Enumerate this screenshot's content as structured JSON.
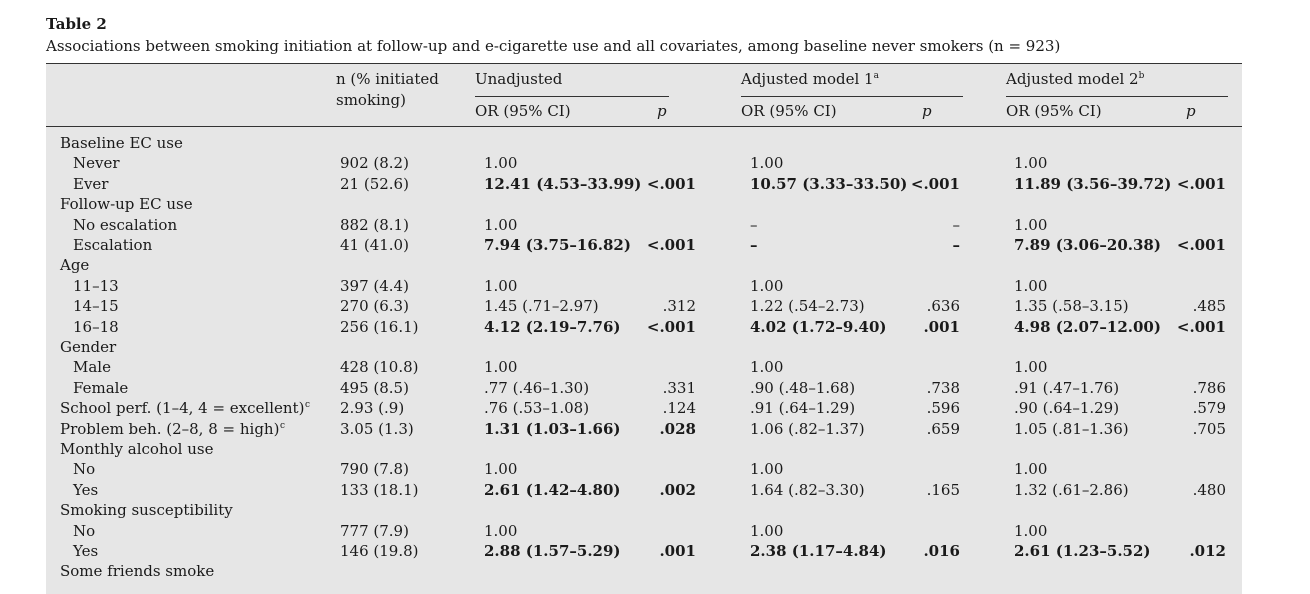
{
  "caption": {
    "title": "Table 2",
    "text": "Associations between smoking initiation at follow-up and e-cigarette use and all covariates, among baseline never smokers (n = 923)"
  },
  "header": {
    "n_line1": "n (% initiated",
    "n_line2": "smoking)",
    "unadjusted": "Unadjusted",
    "model1": "Adjusted model 1",
    "model1_sup": "a",
    "model2": "Adjusted model 2",
    "model2_sup": "b",
    "or_label": "OR (95% CI)",
    "p_label": "p"
  },
  "rows": [
    {
      "label": "Baseline EC use",
      "indent": false,
      "n": "",
      "or1": "",
      "p1": "",
      "or2": "",
      "p2": "",
      "or3": "",
      "p3": "",
      "bold": false
    },
    {
      "label": "Never",
      "indent": true,
      "n": "902 (8.2)",
      "or1": "1.00",
      "p1": "",
      "or2": "1.00",
      "p2": "",
      "or3": "1.00",
      "p3": "",
      "bold": false
    },
    {
      "label": "Ever",
      "indent": true,
      "n": "21 (52.6)",
      "or1": "12.41 (4.53–33.99)",
      "p1": "<.001",
      "or2": "10.57 (3.33–33.50)",
      "p2": "<.001",
      "or3": "11.89 (3.56–39.72)",
      "p3": "<.001",
      "bold": true
    },
    {
      "label": "Follow-up EC use",
      "indent": false,
      "n": "",
      "or1": "",
      "p1": "",
      "or2": "",
      "p2": "",
      "or3": "",
      "p3": "",
      "bold": false
    },
    {
      "label": "No escalation",
      "indent": true,
      "n": "882 (8.1)",
      "or1": "1.00",
      "p1": "",
      "or2": "–",
      "p2": "–",
      "or3": "1.00",
      "p3": "",
      "bold": false
    },
    {
      "label": "Escalation",
      "indent": true,
      "n": "41 (41.0)",
      "or1": "7.94 (3.75–16.82)",
      "p1": "<.001",
      "or2": "–",
      "p2": "–",
      "or3": "7.89 (3.06–20.38)",
      "p3": "<.001",
      "bold": true
    },
    {
      "label": "Age",
      "indent": false,
      "n": "",
      "or1": "",
      "p1": "",
      "or2": "",
      "p2": "",
      "or3": "",
      "p3": "",
      "bold": false
    },
    {
      "label": "11–13",
      "indent": true,
      "n": "397 (4.4)",
      "or1": "1.00",
      "p1": "",
      "or2": "1.00",
      "p2": "",
      "or3": "1.00",
      "p3": "",
      "bold": false
    },
    {
      "label": "14–15",
      "indent": true,
      "n": "270 (6.3)",
      "or1": "1.45 (.71–2.97)",
      "p1": ".312",
      "or2": "1.22 (.54–2.73)",
      "p2": ".636",
      "or3": "1.35 (.58–3.15)",
      "p3": ".485",
      "bold": false
    },
    {
      "label": "16–18",
      "indent": true,
      "n": "256 (16.1)",
      "or1": "4.12 (2.19–7.76)",
      "p1": "<.001",
      "or2": "4.02 (1.72–9.40)",
      "p2": ".001",
      "or3": "4.98 (2.07–12.00)",
      "p3": "<.001",
      "bold": true
    },
    {
      "label": "Gender",
      "indent": false,
      "n": "",
      "or1": "",
      "p1": "",
      "or2": "",
      "p2": "",
      "or3": "",
      "p3": "",
      "bold": false
    },
    {
      "label": "Male",
      "indent": true,
      "n": "428 (10.8)",
      "or1": "1.00",
      "p1": "",
      "or2": "1.00",
      "p2": "",
      "or3": "1.00",
      "p3": "",
      "bold": false
    },
    {
      "label": "Female",
      "indent": true,
      "n": "495 (8.5)",
      "or1": ".77 (.46–1.30)",
      "p1": ".331",
      "or2": ".90 (.48–1.68)",
      "p2": ".738",
      "or3": ".91 (.47–1.76)",
      "p3": ".786",
      "bold": false
    },
    {
      "label": "School perf. (1–4, 4 = excellent)",
      "sup": "c",
      "indent": false,
      "n": "2.93 (.9)",
      "or1": ".76 (.53–1.08)",
      "p1": ".124",
      "or2": ".91 (.64–1.29)",
      "p2": ".596",
      "or3": ".90 (.64–1.29)",
      "p3": ".579",
      "bold": false
    },
    {
      "label": "Problem beh. (2–8, 8 = high)",
      "sup": "c",
      "indent": false,
      "n": "3.05 (1.3)",
      "or1": "1.31 (1.03–1.66)",
      "p1": ".028",
      "or2": "1.06 (.82–1.37)",
      "p2": ".659",
      "or3": "1.05 (.81–1.36)",
      "p3": ".705",
      "bold": false,
      "bold_first": true
    },
    {
      "label": "Monthly alcohol use",
      "indent": false,
      "n": "",
      "or1": "",
      "p1": "",
      "or2": "",
      "p2": "",
      "or3": "",
      "p3": "",
      "bold": false
    },
    {
      "label": "No",
      "indent": true,
      "n": "790 (7.8)",
      "or1": "1.00",
      "p1": "",
      "or2": "1.00",
      "p2": "",
      "or3": "1.00",
      "p3": "",
      "bold": false
    },
    {
      "label": "Yes",
      "indent": true,
      "n": "133 (18.1)",
      "or1": "2.61 (1.42–4.80)",
      "p1": ".002",
      "or2": "1.64 (.82–3.30)",
      "p2": ".165",
      "or3": "1.32 (.61–2.86)",
      "p3": ".480",
      "bold": false,
      "bold_first": true
    },
    {
      "label": "Smoking susceptibility",
      "indent": false,
      "n": "",
      "or1": "",
      "p1": "",
      "or2": "",
      "p2": "",
      "or3": "",
      "p3": "",
      "bold": false
    },
    {
      "label": "No",
      "indent": true,
      "n": "777 (7.9)",
      "or1": "1.00",
      "p1": "",
      "or2": "1.00",
      "p2": "",
      "or3": "1.00",
      "p3": "",
      "bold": false
    },
    {
      "label": "Yes",
      "indent": true,
      "n": "146 (19.8)",
      "or1": "2.88 (1.57–5.29)",
      "p1": ".001",
      "or2": "2.38 (1.17–4.84)",
      "p2": ".016",
      "or3": "2.61 (1.23–5.52)",
      "p3": ".012",
      "bold": true
    },
    {
      "label": "Some friends smoke",
      "indent": false,
      "n": "",
      "or1": "",
      "p1": "",
      "or2": "",
      "p2": "",
      "or3": "",
      "p3": "",
      "bold": false
    }
  ]
}
